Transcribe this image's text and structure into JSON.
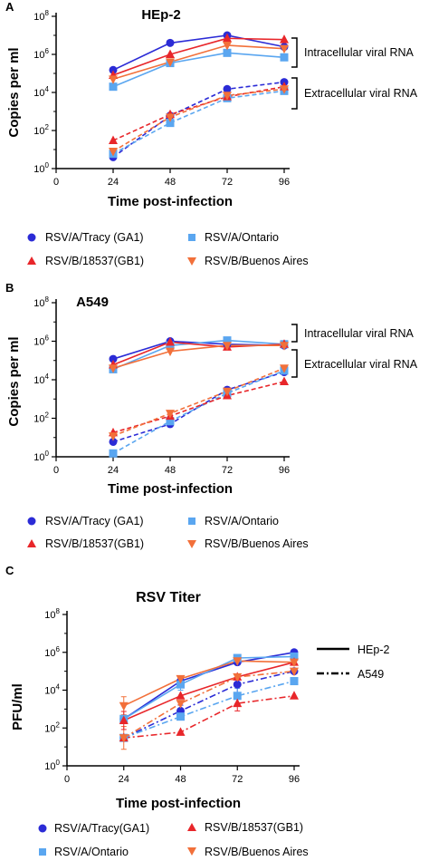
{
  "colors": {
    "tracy": "#2b2bd6",
    "ontario": "#5aa6f0",
    "gb1": "#e8262a",
    "ba": "#f2703a"
  },
  "legend_items": [
    {
      "label": "RSV/A/Tracy (GA1)",
      "color": "#2b2bd6",
      "marker": "circle"
    },
    {
      "label": "RSV/A/Ontario",
      "color": "#5aa6f0",
      "marker": "square"
    },
    {
      "label": "RSV/B/18537(GB1)",
      "color": "#e8262a",
      "marker": "triangle-up"
    },
    {
      "label": "RSV/B/Buenos Aires",
      "color": "#f2703a",
      "marker": "triangle-down"
    }
  ],
  "legend_items_c": [
    {
      "label": "RSV/A/Tracy(GA1)",
      "color": "#2b2bd6",
      "marker": "circle"
    },
    {
      "label": "RSV/B/18537(GB1)",
      "color": "#e8262a",
      "marker": "triangle-up"
    },
    {
      "label": "RSV/A/Ontario",
      "color": "#5aa6f0",
      "marker": "square"
    },
    {
      "label": "RSV/B/Buenos Aires",
      "color": "#f2703a",
      "marker": "triangle-down"
    }
  ],
  "chart_data": [
    {
      "panel": "A",
      "type": "line",
      "title": "HEp-2",
      "xlabel": "Time post-infection",
      "ylabel": "Copies per ml",
      "y_scale": "log10",
      "ylim": [
        1,
        100000000
      ],
      "xlim": [
        0,
        96
      ],
      "x_ticks": [
        0,
        24,
        48,
        72,
        96
      ],
      "x": [
        24,
        48,
        72,
        96
      ],
      "annotations": [
        "Intracellular viral  RNA",
        "Extracellular viral RNA"
      ],
      "series": [
        {
          "name": "RSV/A/Tracy (GA1)",
          "group": "Intracellular viral  RNA",
          "values": [
            150000,
            4000000,
            10000000,
            2500000
          ]
        },
        {
          "name": "RSV/A/Ontario",
          "group": "Intracellular viral  RNA",
          "values": [
            20000,
            350000,
            1200000,
            700000
          ]
        },
        {
          "name": "RSV/B/18537(GB1)",
          "group": "Intracellular viral  RNA",
          "values": [
            80000,
            1000000,
            7000000,
            6000000
          ]
        },
        {
          "name": "RSV/B/Buenos Aires",
          "group": "Intracellular viral  RNA",
          "values": [
            50000,
            400000,
            3000000,
            2000000
          ]
        },
        {
          "name": "RSV/A/Tracy (GA1)",
          "group": "Extracellular viral RNA",
          "values": [
            4,
            600,
            15000,
            35000
          ]
        },
        {
          "name": "RSV/A/Ontario",
          "group": "Extracellular viral RNA",
          "values": [
            6,
            250,
            5000,
            12000
          ]
        },
        {
          "name": "RSV/B/18537(GB1)",
          "group": "Extracellular viral RNA",
          "values": [
            30,
            700,
            6000,
            20000
          ]
        },
        {
          "name": "RSV/B/Buenos Aires",
          "group": "Extracellular viral RNA",
          "values": [
            8,
            500,
            7000,
            15000
          ]
        }
      ]
    },
    {
      "panel": "B",
      "type": "line",
      "title": "A549",
      "xlabel": "Time post-infection",
      "ylabel": "Copies per ml",
      "y_scale": "log10",
      "ylim": [
        1,
        100000000
      ],
      "xlim": [
        0,
        96
      ],
      "x_ticks": [
        0,
        24,
        48,
        72,
        96
      ],
      "x": [
        24,
        48,
        72,
        96
      ],
      "annotations": [
        "Intracellular viral RNA",
        "Extracellular viral  RNA"
      ],
      "series": [
        {
          "name": "RSV/A/Tracy (GA1)",
          "group": "Intracellular viral RNA",
          "values": [
            120000,
            1000000,
            700000,
            600000
          ]
        },
        {
          "name": "RSV/A/Ontario",
          "group": "Intracellular viral RNA",
          "values": [
            35000,
            600000,
            1100000,
            700000
          ]
        },
        {
          "name": "RSV/B/18537(GB1)",
          "group": "Intracellular viral RNA",
          "values": [
            60000,
            900000,
            500000,
            700000
          ]
        },
        {
          "name": "RSV/B/Buenos Aires",
          "group": "Intracellular viral RNA",
          "values": [
            40000,
            300000,
            600000,
            600000
          ]
        },
        {
          "name": "RSV/A/Tracy (GA1)",
          "group": "Extracellular viral  RNA",
          "values": [
            6,
            50,
            3000,
            25000
          ]
        },
        {
          "name": "RSV/A/Ontario",
          "group": "Extracellular viral  RNA",
          "values": [
            1.5,
            70,
            2000,
            30000
          ]
        },
        {
          "name": "RSV/B/18537(GB1)",
          "group": "Extracellular viral  RNA",
          "values": [
            18,
            130,
            1500,
            8000
          ]
        },
        {
          "name": "RSV/B/Buenos Aires",
          "group": "Extracellular viral  RNA",
          "values": [
            12,
            180,
            2500,
            40000
          ]
        }
      ]
    },
    {
      "panel": "C",
      "type": "line",
      "title": "RSV Titer",
      "xlabel": "Time post-infection",
      "ylabel": "PFU/ml",
      "y_scale": "log10",
      "ylim": [
        1,
        100000000
      ],
      "xlim": [
        0,
        96
      ],
      "x_ticks": [
        0,
        24,
        48,
        72,
        96
      ],
      "x": [
        24,
        48,
        72,
        96
      ],
      "line_styles": [
        {
          "label": "HEp-2",
          "style": "solid"
        },
        {
          "label": "A549",
          "style": "dash-dot"
        }
      ],
      "series": [
        {
          "name": "RSV/A/Tracy(GA1)",
          "group": "HEp-2",
          "values": [
            300,
            30000,
            300000,
            1000000
          ]
        },
        {
          "name": "RSV/A/Ontario",
          "group": "HEp-2",
          "values": [
            300,
            20000,
            500000,
            600000
          ]
        },
        {
          "name": "RSV/B/18537(GB1)",
          "group": "HEp-2",
          "values": [
            250,
            5000,
            50000,
            300000
          ]
        },
        {
          "name": "RSV/B/Buenos Aires",
          "group": "HEp-2",
          "values": [
            1500,
            40000,
            350000,
            300000
          ]
        },
        {
          "name": "RSV/A/Tracy(GA1)",
          "group": "A549",
          "values": [
            30,
            800,
            20000,
            100000
          ]
        },
        {
          "name": "RSV/A/Ontario",
          "group": "A549",
          "values": [
            30,
            400,
            5000,
            30000
          ]
        },
        {
          "name": "RSV/B/18537(GB1)",
          "group": "A549",
          "values": [
            30,
            60,
            2000,
            5000
          ]
        },
        {
          "name": "RSV/B/Buenos Aires",
          "group": "A549",
          "values": [
            30,
            2000,
            50000,
            100000
          ]
        }
      ]
    }
  ]
}
